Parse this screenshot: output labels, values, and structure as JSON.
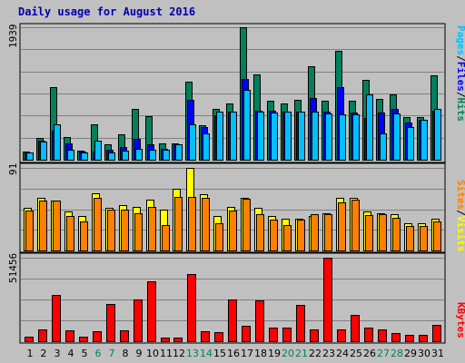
{
  "title": "Daily usage for August 2016",
  "colors": {
    "background": "#c0c0c0",
    "panel": "#c0c0c0",
    "hits": "#00805c",
    "files": "#0000ff",
    "pages": "#00c0ff",
    "visits": "#ffff00",
    "sites": "#ff8000",
    "kbytes": "#ff0000",
    "weekend_label": "#00805c",
    "weekday_label": "#000000",
    "title": "#0000b0"
  },
  "side_labels": {
    "top": [
      "Pages",
      "/",
      "Files",
      "/",
      "Hits"
    ],
    "middle": [
      "Sites",
      "/",
      "Visits"
    ],
    "bottom": [
      "KBytes"
    ]
  },
  "chart_data": [
    {
      "type": "bar",
      "panel": "hits-files-pages",
      "ymax_label": "1939",
      "ylim": [
        0,
        1939
      ],
      "grid": true,
      "x": [
        1,
        2,
        3,
        4,
        5,
        6,
        7,
        8,
        9,
        10,
        11,
        12,
        13,
        14,
        15,
        16,
        17,
        18,
        19,
        20,
        21,
        22,
        23,
        24,
        25,
        26,
        27,
        28,
        29,
        30,
        31
      ],
      "series": [
        {
          "name": "Hits",
          "values": [
            120,
            320,
            1060,
            330,
            130,
            520,
            230,
            370,
            740,
            640,
            240,
            240,
            1140,
            500,
            750,
            820,
            1939,
            1250,
            860,
            830,
            870,
            1370,
            860,
            1590,
            860,
            1170,
            890,
            950,
            620,
            620,
            1240
          ]
        },
        {
          "name": "Files",
          "values": [
            110,
            280,
            430,
            240,
            120,
            120,
            150,
            180,
            300,
            220,
            160,
            230,
            870,
            480,
            650,
            700,
            1180,
            720,
            720,
            710,
            710,
            900,
            700,
            1060,
            690,
            610,
            690,
            740,
            550,
            580,
            720
          ]
        },
        {
          "name": "Pages",
          "values": [
            110,
            270,
            520,
            140,
            100,
            280,
            100,
            130,
            160,
            140,
            140,
            230,
            520,
            380,
            700,
            700,
            1020,
            710,
            690,
            710,
            700,
            700,
            680,
            670,
            670,
            960,
            380,
            680,
            480,
            580,
            740
          ]
        }
      ],
      "day_labels": [
        {
          "text": "1",
          "weekend": false
        },
        {
          "text": "2",
          "weekend": false
        },
        {
          "text": "3",
          "weekend": false
        },
        {
          "text": "4",
          "weekend": false
        },
        {
          "text": "5",
          "weekend": false
        },
        {
          "text": "6",
          "weekend": true
        },
        {
          "text": "7",
          "weekend": true
        },
        {
          "text": "8",
          "weekend": false
        },
        {
          "text": "9",
          "weekend": false
        },
        {
          "text": "10",
          "weekend": false
        },
        {
          "text": "11",
          "weekend": false
        },
        {
          "text": "12",
          "weekend": false
        },
        {
          "text": "13",
          "weekend": true
        },
        {
          "text": "14",
          "weekend": true
        },
        {
          "text": "15",
          "weekend": false
        },
        {
          "text": "16",
          "weekend": false
        },
        {
          "text": "17",
          "weekend": false
        },
        {
          "text": "18",
          "weekend": false
        },
        {
          "text": "19",
          "weekend": false
        },
        {
          "text": "20",
          "weekend": true
        },
        {
          "text": "21",
          "weekend": true
        },
        {
          "text": "22",
          "weekend": false
        },
        {
          "text": "23",
          "weekend": false
        },
        {
          "text": "24",
          "weekend": false
        },
        {
          "text": "25",
          "weekend": false
        },
        {
          "text": "26",
          "weekend": false
        },
        {
          "text": "27",
          "weekend": true
        },
        {
          "text": "28",
          "weekend": true
        },
        {
          "text": "29",
          "weekend": false
        },
        {
          "text": "30",
          "weekend": false
        },
        {
          "text": "31",
          "weekend": false
        }
      ]
    },
    {
      "type": "bar",
      "panel": "visits-sites",
      "ymax_label": "91",
      "ylim": [
        0,
        91
      ],
      "grid": true,
      "x": [
        1,
        2,
        3,
        4,
        5,
        6,
        7,
        8,
        9,
        10,
        11,
        12,
        13,
        14,
        15,
        16,
        17,
        18,
        19,
        20,
        21,
        22,
        23,
        24,
        25,
        26,
        27,
        28,
        29,
        30,
        31
      ],
      "series": [
        {
          "name": "Visits",
          "values": [
            47,
            58,
            55,
            43,
            38,
            63,
            47,
            50,
            48,
            56,
            45,
            68,
            91,
            62,
            38,
            48,
            58,
            47,
            38,
            35,
            35,
            38,
            41,
            58,
            58,
            43,
            41,
            40,
            30,
            30,
            35
          ]
        },
        {
          "name": "Sites",
          "values": [
            44,
            55,
            55,
            38,
            32,
            58,
            45,
            45,
            41,
            48,
            28,
            59,
            59,
            58,
            30,
            44,
            57,
            40,
            34,
            28,
            34,
            40,
            40,
            53,
            56,
            39,
            40,
            36,
            27,
            27,
            32
          ]
        }
      ]
    },
    {
      "type": "bar",
      "panel": "kbytes",
      "ymax_label": "51456",
      "ylim": [
        0,
        51456
      ],
      "grid": true,
      "x": [
        1,
        2,
        3,
        4,
        5,
        6,
        7,
        8,
        9,
        10,
        11,
        12,
        13,
        14,
        15,
        16,
        17,
        18,
        19,
        20,
        21,
        22,
        23,
        24,
        25,
        26,
        27,
        28,
        29,
        30,
        31
      ],
      "series": [
        {
          "name": "KBytes",
          "values": [
            3000,
            7500,
            28500,
            6500,
            2800,
            6000,
            23000,
            6600,
            25500,
            37000,
            2000,
            2500,
            41500,
            6000,
            5500,
            26000,
            9700,
            25000,
            8300,
            8500,
            22500,
            7500,
            51456,
            7500,
            16300,
            8200,
            7300,
            5000,
            3900,
            4100,
            10000
          ]
        }
      ]
    }
  ]
}
